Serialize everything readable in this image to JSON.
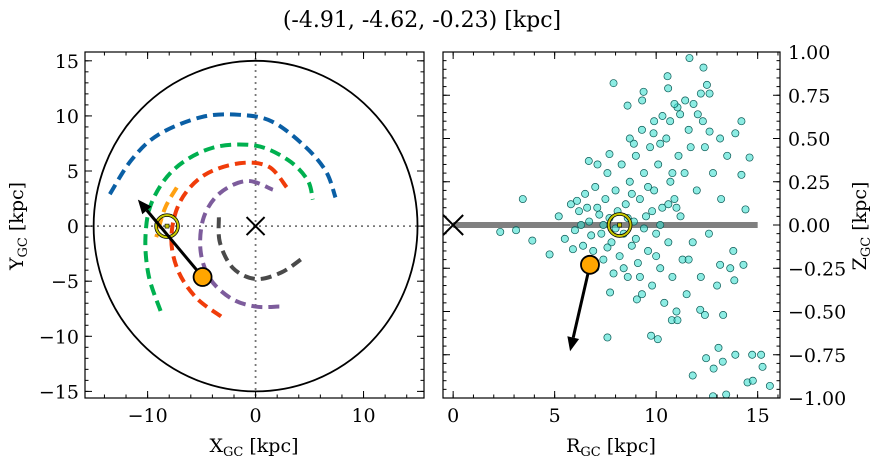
{
  "title": "(-4.91, -4.62, -0.23) [kpc]",
  "chart_data": [
    {
      "type": "line",
      "xlabel": "X_GC [kpc]",
      "ylabel": "Y_GC [kpc]",
      "xlim": [
        -15.8,
        15.6
      ],
      "ylim": [
        -15.6,
        15.8
      ],
      "xticks": [
        -10,
        0,
        10
      ],
      "yticks": [
        -15,
        -10,
        -5,
        0,
        5,
        10,
        15
      ],
      "boundary_circle_radius": 15,
      "reference_lines": {
        "x": 0,
        "y": 0,
        "style": "dotted"
      },
      "series": [
        {
          "color": "#0a5fa5",
          "style": "dashed",
          "points": [
            [
              -13.5,
              2.9
            ],
            [
              -11.5,
              6
            ],
            [
              -9,
              8.3
            ],
            [
              -5,
              9.9
            ],
            [
              -1.5,
              10.1
            ],
            [
              1.5,
              9.5
            ],
            [
              4.5,
              7.3
            ],
            [
              6.5,
              5
            ],
            [
              7.4,
              2.6
            ]
          ]
        },
        {
          "color": "#00b04f",
          "style": "dashed",
          "points": [
            [
              -8.8,
              -7.7
            ],
            [
              -9.9,
              -4.5
            ],
            [
              -10.2,
              -1
            ],
            [
              -9.6,
              2.2
            ],
            [
              -7.5,
              5.2
            ],
            [
              -4,
              7.1
            ],
            [
              0,
              7.3
            ],
            [
              3,
              6
            ],
            [
              4.8,
              4.2
            ],
            [
              5.3,
              2.4
            ]
          ]
        },
        {
          "color": "#f03c0a",
          "style": "dashed",
          "points": [
            [
              -3.2,
              -8.2
            ],
            [
              -5.5,
              -6.5
            ],
            [
              -7.2,
              -4
            ],
            [
              -7.8,
              -1
            ],
            [
              -7,
              2.2
            ],
            [
              -4.8,
              4.6
            ],
            [
              -1.5,
              5.7
            ],
            [
              1.2,
              5.4
            ],
            [
              2.9,
              3.5
            ]
          ]
        },
        {
          "color": "#7d5c9c",
          "style": "dashed",
          "points": [
            [
              2.2,
              -7.3
            ],
            [
              0,
              -7.3
            ],
            [
              -2.2,
              -6.6
            ],
            [
              -4.2,
              -4.8
            ],
            [
              -5.1,
              -2.2
            ],
            [
              -4.8,
              0.8
            ],
            [
              -3.3,
              3
            ],
            [
              -0.8,
              4.1
            ],
            [
              1.6,
              3.3
            ]
          ]
        },
        {
          "color": "#4a4a4a",
          "style": "dashed",
          "points": [
            [
              -3.4,
              0.8
            ],
            [
              -3.3,
              -1.5
            ],
            [
              -2.1,
              -3.8
            ],
            [
              0,
              -4.8
            ],
            [
              2.4,
              -4.2
            ],
            [
              4.5,
              -2.8
            ]
          ]
        },
        {
          "color": "#ffa010",
          "style": "dashed",
          "points": [
            [
              -7.3,
              3.5
            ],
            [
              -8.4,
              1.6
            ],
            [
              -9.2,
              -1
            ]
          ]
        }
      ],
      "markers": {
        "galactic_center": {
          "x": 0,
          "y": 0,
          "symbol": "x"
        },
        "sun": {
          "x": -8.2,
          "y": 0,
          "symbol": "sun",
          "color": "#c8c800"
        },
        "object": {
          "x": -4.91,
          "y": -4.62,
          "color": "#ffa500"
        },
        "velocity_arrow": {
          "from": [
            -4.91,
            -4.62
          ],
          "to": [
            -10.9,
            2.4
          ]
        }
      }
    },
    {
      "type": "scatter",
      "xlabel": "R_GC [kpc]",
      "ylabel": "Z_GC [kpc]",
      "xlim": [
        -0.5,
        16.1
      ],
      "ylim": [
        -1.0,
        1.0
      ],
      "xticks": [
        0,
        5,
        10,
        15
      ],
      "yticks": [
        "-1.00",
        "-0.75",
        "-0.50",
        "-0.25",
        "0.00",
        "0.25",
        "0.50",
        "0.75",
        "1.00"
      ],
      "ytick_side": "right",
      "colors": {
        "points": "#40e0d0",
        "edge": "#0b5a55",
        "disk": "#808080"
      },
      "disk_line": {
        "from": 0,
        "to": 15,
        "z": 0
      },
      "points": [
        [
          11.64,
          0.965
        ],
        [
          12.33,
          0.91
        ],
        [
          10.56,
          0.86
        ],
        [
          7.9,
          0.82
        ],
        [
          9.38,
          0.77
        ],
        [
          9.31,
          0.72
        ],
        [
          8.59,
          0.69
        ],
        [
          10.59,
          0.79
        ],
        [
          12.5,
          0.81
        ],
        [
          12.63,
          0.76
        ],
        [
          12.2,
          0.76
        ],
        [
          11.43,
          0.72
        ],
        [
          11.84,
          0.7
        ],
        [
          11.05,
          0.68
        ],
        [
          11.18,
          0.64
        ],
        [
          12.05,
          0.64
        ],
        [
          10.31,
          0.63
        ],
        [
          10.69,
          0.6
        ],
        [
          14.2,
          0.6
        ],
        [
          9.87,
          0.53
        ],
        [
          13.9,
          0.53
        ],
        [
          8.9,
          0.47
        ],
        [
          10.2,
          0.47
        ],
        [
          12.63,
          0.54
        ],
        [
          13.15,
          0.5
        ],
        [
          14.6,
          0.39
        ],
        [
          6.68,
          0.37
        ],
        [
          7.11,
          0.35
        ],
        [
          7.7,
          0.41
        ],
        [
          14.2,
          0.29
        ],
        [
          14.4,
          0.09
        ],
        [
          3.43,
          0.15
        ],
        [
          2.32,
          -0.04
        ],
        [
          3.1,
          -0.03
        ],
        [
          3.9,
          -0.09
        ],
        [
          4.75,
          -0.17
        ],
        [
          7.73,
          -0.39
        ],
        [
          7.6,
          -0.65
        ],
        [
          9.75,
          -0.64
        ],
        [
          10.08,
          -0.66
        ],
        [
          9.05,
          -0.43
        ],
        [
          10.77,
          -0.55
        ],
        [
          11.05,
          -0.55
        ],
        [
          12.17,
          -0.49
        ],
        [
          13.3,
          -0.52
        ],
        [
          12.4,
          -0.52
        ],
        [
          13.07,
          -0.71
        ],
        [
          12.46,
          -0.77
        ],
        [
          13.28,
          -0.79
        ],
        [
          13.9,
          -0.75
        ],
        [
          14.73,
          -0.75
        ],
        [
          15.17,
          -0.75
        ],
        [
          15.24,
          -0.82
        ],
        [
          11.8,
          -0.87
        ],
        [
          12.83,
          -0.83
        ],
        [
          14.5,
          -0.91
        ],
        [
          14.76,
          -0.9
        ],
        [
          15.6,
          -0.93
        ],
        [
          12.8,
          -0.99
        ],
        [
          13.45,
          -0.98
        ],
        [
          13.8,
          -0.15
        ],
        [
          14.3,
          -0.23
        ],
        [
          13.85,
          -0.32
        ],
        [
          13.65,
          -0.25
        ],
        [
          13.15,
          -0.23
        ],
        [
          5.2,
          0.05
        ],
        [
          5.5,
          -0.08
        ],
        [
          5.8,
          0.12
        ],
        [
          6.0,
          -0.03
        ],
        [
          6.2,
          0.08
        ],
        [
          6.4,
          -0.12
        ],
        [
          6.5,
          0.18
        ],
        [
          6.7,
          0.02
        ],
        [
          6.9,
          -0.15
        ],
        [
          7.0,
          0.22
        ],
        [
          7.1,
          0.1
        ],
        [
          7.3,
          -0.05
        ],
        [
          7.4,
          -0.2
        ],
        [
          7.5,
          0.15
        ],
        [
          7.6,
          0.3
        ],
        [
          7.7,
          0.04
        ],
        [
          7.8,
          -0.1
        ],
        [
          7.9,
          -0.28
        ],
        [
          8.0,
          0.2
        ],
        [
          8.1,
          0.08
        ],
        [
          8.2,
          -0.18
        ],
        [
          8.3,
          0.35
        ],
        [
          8.4,
          -0.05
        ],
        [
          8.5,
          0.12
        ],
        [
          8.6,
          -0.3
        ],
        [
          8.7,
          0.25
        ],
        [
          8.8,
          -0.12
        ],
        [
          8.9,
          0.02
        ],
        [
          9.0,
          0.4
        ],
        [
          9.1,
          -0.22
        ],
        [
          9.2,
          0.15
        ],
        [
          9.3,
          -0.4
        ],
        [
          9.4,
          0.3
        ],
        [
          9.5,
          0.05
        ],
        [
          9.6,
          -0.15
        ],
        [
          9.7,
          0.45
        ],
        [
          9.8,
          -0.35
        ],
        [
          9.9,
          0.2
        ],
        [
          10.0,
          -0.05
        ],
        [
          10.1,
          0.35
        ],
        [
          10.2,
          -0.25
        ],
        [
          10.3,
          0.1
        ],
        [
          10.4,
          -0.45
        ],
        [
          10.5,
          0.5
        ],
        [
          10.6,
          -0.1
        ],
        [
          10.7,
          0.25
        ],
        [
          10.8,
          -0.3
        ],
        [
          10.9,
          0.15
        ],
        [
          11.0,
          -0.5
        ],
        [
          11.1,
          0.4
        ],
        [
          11.2,
          0.05
        ],
        [
          11.3,
          -0.2
        ],
        [
          11.4,
          0.3
        ],
        [
          11.5,
          -0.4
        ],
        [
          11.6,
          0.55
        ],
        [
          11.8,
          -0.1
        ],
        [
          12.0,
          0.2
        ],
        [
          12.2,
          -0.3
        ],
        [
          12.4,
          0.45
        ],
        [
          12.6,
          -0.05
        ],
        [
          12.8,
          0.3
        ],
        [
          13.0,
          -0.35
        ],
        [
          13.2,
          0.15
        ],
        [
          13.5,
          0.4
        ],
        [
          6.3,
          0.0
        ],
        [
          6.8,
          -0.06
        ],
        [
          7.2,
          0.06
        ],
        [
          7.6,
          -0.13
        ],
        [
          8.0,
          -0.02
        ],
        [
          8.6,
          0.04
        ],
        [
          9.0,
          -0.08
        ],
        [
          9.4,
          -0.02
        ],
        [
          9.8,
          0.08
        ],
        [
          10.2,
          0.0
        ],
        [
          5.9,
          -0.14
        ],
        [
          6.6,
          0.1
        ],
        [
          7.4,
          0.0
        ],
        [
          8.8,
          0.18
        ],
        [
          9.6,
          0.22
        ],
        [
          10.6,
          0.12
        ],
        [
          11.0,
          0.1
        ],
        [
          10.0,
          -0.18
        ],
        [
          9.2,
          -0.3
        ],
        [
          8.4,
          -0.25
        ],
        [
          7.0,
          -0.25
        ],
        [
          6.1,
          0.14
        ],
        [
          10.8,
          0.3
        ],
        [
          11.6,
          -0.2
        ],
        [
          9.9,
          0.6
        ],
        [
          10.9,
          0.7
        ],
        [
          11.7,
          0.45
        ],
        [
          12.3,
          0.6
        ],
        [
          8.7,
          0.5
        ],
        [
          9.3,
          0.55
        ]
      ],
      "markers": {
        "galactic_center": {
          "x": 0,
          "y": 0,
          "symbol": "x"
        },
        "sun": {
          "x": 8.2,
          "y": 0,
          "symbol": "sun",
          "color": "#c8c800"
        },
        "object": {
          "x": 6.74,
          "y": -0.23,
          "color": "#ffa500"
        },
        "velocity_arrow": {
          "from": [
            6.74,
            -0.23
          ],
          "to": [
            5.76,
            -0.73
          ]
        }
      }
    }
  ]
}
